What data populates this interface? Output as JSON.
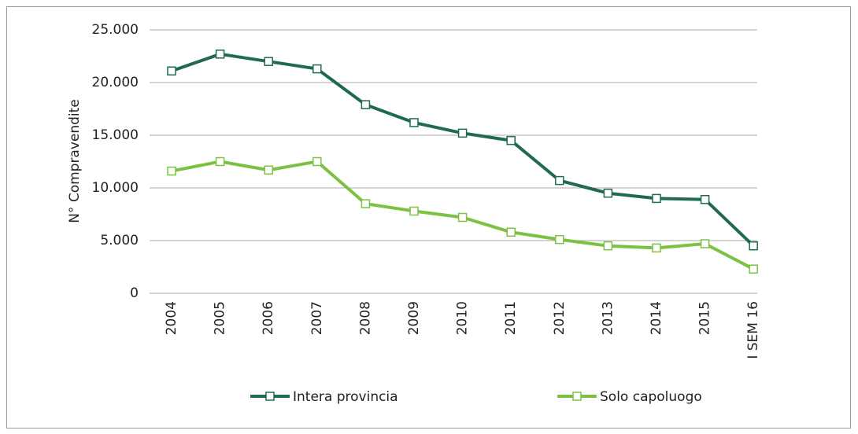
{
  "chart_data": {
    "type": "line",
    "ylabel": "N° Compravendite",
    "categories": [
      "2004",
      "2005",
      "2006",
      "2007",
      "2008",
      "2009",
      "2010",
      "2011",
      "2012",
      "2013",
      "2014",
      "2015",
      "I SEM 16"
    ],
    "series": [
      {
        "name": "Intera provincia",
        "color": "#1f6b4b",
        "values": [
          21100,
          22700,
          22000,
          21300,
          17900,
          16200,
          15200,
          14500,
          10700,
          9500,
          9000,
          8900,
          4500
        ]
      },
      {
        "name": "Solo capoluogo",
        "color": "#7cc242",
        "values": [
          11600,
          12500,
          11700,
          12500,
          8500,
          7800,
          7200,
          5800,
          5100,
          4500,
          4300,
          4700,
          2300
        ]
      }
    ],
    "ylim": [
      0,
      25000
    ],
    "yticks": [
      0,
      {
        "value": 5000,
        "label": "5.000"
      },
      {
        "value": 10000,
        "label": "10.000"
      },
      {
        "value": 15000,
        "label": "15.000"
      },
      {
        "value": 20000,
        "label": "20.000"
      },
      {
        "value": 25000,
        "label": "25.000"
      }
    ],
    "grid": true,
    "legend": "bottom"
  }
}
